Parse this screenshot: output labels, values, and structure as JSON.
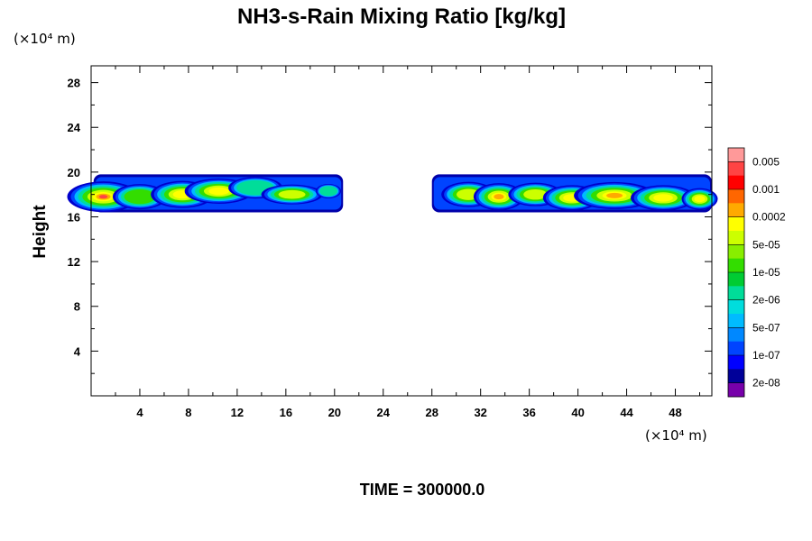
{
  "chart_data": {
    "type": "heatmap",
    "title": "NH3-s-Rain Mixing Ratio [kg/kg]",
    "ylabel": "Height",
    "y_unit": "(×10⁴ m)",
    "x_unit": "(×10⁴ m)",
    "xlim": [
      0,
      51
    ],
    "ylim": [
      0,
      29.5
    ],
    "x_ticks": [
      "4",
      "8",
      "12",
      "16",
      "20",
      "24",
      "28",
      "32",
      "36",
      "40",
      "44",
      "48"
    ],
    "y_ticks": [
      "4",
      "8",
      "12",
      "16",
      "20",
      "24",
      "28"
    ],
    "time_label": "TIME = 300000.0",
    "colorbar": {
      "labels": [
        "0.005",
        "0.001",
        "0.0002",
        "5e-05",
        "1e-05",
        "2e-06",
        "5e-07",
        "1e-07",
        "2e-08"
      ],
      "colors": [
        "#ff9999",
        "#ff4444",
        "#ff0000",
        "#ff6600",
        "#ffaa00",
        "#ffff00",
        "#ccff00",
        "#88ee00",
        "#33dd00",
        "#00cc33",
        "#00dd99",
        "#00dddd",
        "#00bbff",
        "#0088ff",
        "#0044ff",
        "#0000ff",
        "#000099",
        "#7700aa"
      ]
    },
    "regions": [
      {
        "name": "left-cloud-layer",
        "x_range": [
          0,
          20.5
        ],
        "y_range": [
          16.2,
          19.8
        ],
        "max_level": "0.001"
      },
      {
        "name": "right-cloud-layer",
        "x_range": [
          28,
          51
        ],
        "y_range": [
          16.2,
          19.8
        ],
        "max_level": "0.0002"
      }
    ]
  }
}
